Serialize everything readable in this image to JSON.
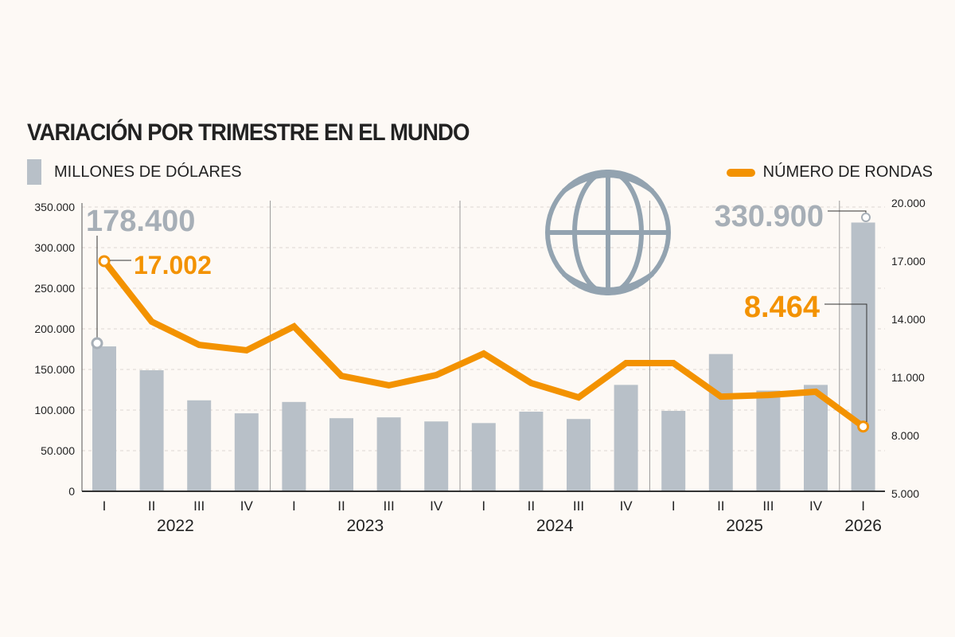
{
  "chart_data": {
    "type": "bar+line",
    "title": "VARIACIÓN POR TRIMESTRE EN EL MUNDO",
    "categories": [
      "I",
      "II",
      "III",
      "IV",
      "I",
      "II",
      "III",
      "IV",
      "I",
      "II",
      "III",
      "IV",
      "I",
      "II",
      "III",
      "IV",
      "I"
    ],
    "years": [
      {
        "label": "2022",
        "span": 4
      },
      {
        "label": "2023",
        "span": 4
      },
      {
        "label": "2024",
        "span": 4
      },
      {
        "label": "2025",
        "span": 4
      },
      {
        "label": "2026",
        "span": 1
      }
    ],
    "series": [
      {
        "name": "MILLONES DE DÓLARES",
        "type": "bar",
        "axis": "left",
        "color": "#b8c0c8",
        "values": [
          178400,
          149000,
          112000,
          96000,
          110000,
          90000,
          91000,
          86000,
          84000,
          98000,
          89000,
          131000,
          99000,
          169000,
          124000,
          131000,
          330900
        ]
      },
      {
        "name": "NÚMERO DE RONDAS",
        "type": "line",
        "axis": "right",
        "color": "#f39200",
        "values": [
          17002,
          13880,
          12680,
          12400,
          13630,
          11080,
          10590,
          11120,
          12230,
          10710,
          9970,
          11740,
          11740,
          10010,
          10090,
          10260,
          8464
        ]
      }
    ],
    "left_axis": {
      "ylim": [
        0,
        350000
      ],
      "ticks": [
        "0",
        "50.000",
        "100.000",
        "150.000",
        "200.000",
        "250.000",
        "300.000",
        "350.000"
      ]
    },
    "right_axis": {
      "ylim": [
        5000,
        20000
      ],
      "ticks": [
        "5.000",
        "8.000",
        "11.000",
        "14.000",
        "17.000",
        "20.000"
      ]
    },
    "annotations": [
      {
        "text": "178.400",
        "series": "bar",
        "index": 0,
        "color": "#a7afb7"
      },
      {
        "text": "17.002",
        "series": "line",
        "index": 0,
        "color": "#f39200"
      },
      {
        "text": "330.900",
        "series": "bar",
        "index": 16,
        "color": "#a7afb7"
      },
      {
        "text": "8.464",
        "series": "line",
        "index": 16,
        "color": "#f39200"
      }
    ],
    "grid": true,
    "legend": "top",
    "icon": "globe-icon"
  }
}
